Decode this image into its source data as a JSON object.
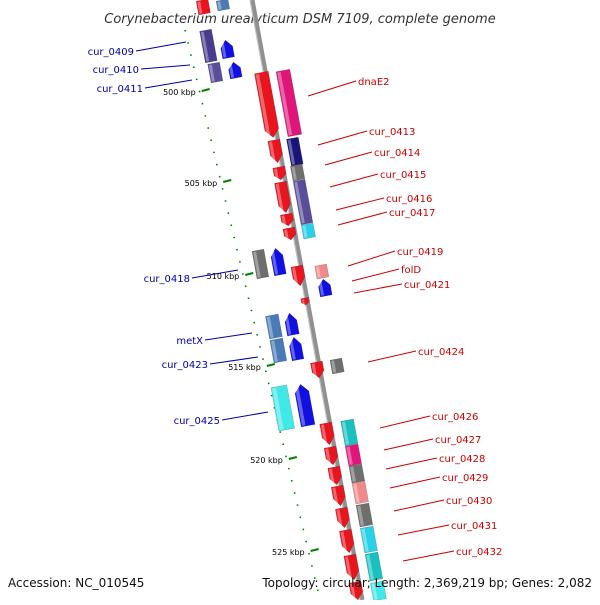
{
  "title": "Corynebacterium urealyticum DSM 7109, complete genome",
  "footer": {
    "accession": "Accession: NC_010545",
    "summary": "Topology: circular; Length: 2,369,219 bp; Genes: 2,082"
  },
  "colors": {
    "backbone": "#888888",
    "tick": "#008000",
    "left_label": "#0000aa",
    "right_label": "#cc0000"
  },
  "ticks": [
    "500 kbp",
    "505 kbp",
    "510 kbp",
    "515 kbp",
    "520 kbp",
    "525 kbp"
  ],
  "left_labels": [
    "cur_0409",
    "cur_0410",
    "cur_0411",
    "cur_0418",
    "metX",
    "cur_0423",
    "cur_0425"
  ],
  "right_labels": [
    "dnaE2",
    "cur_0413",
    "cur_0414",
    "cur_0415",
    "cur_0416",
    "cur_0417",
    "cur_0419",
    "folD",
    "cur_0421",
    "cur_0424",
    "cur_0426",
    "cur_0427",
    "cur_0428",
    "cur_0429",
    "cur_0430",
    "cur_0431",
    "cur_0432"
  ]
}
